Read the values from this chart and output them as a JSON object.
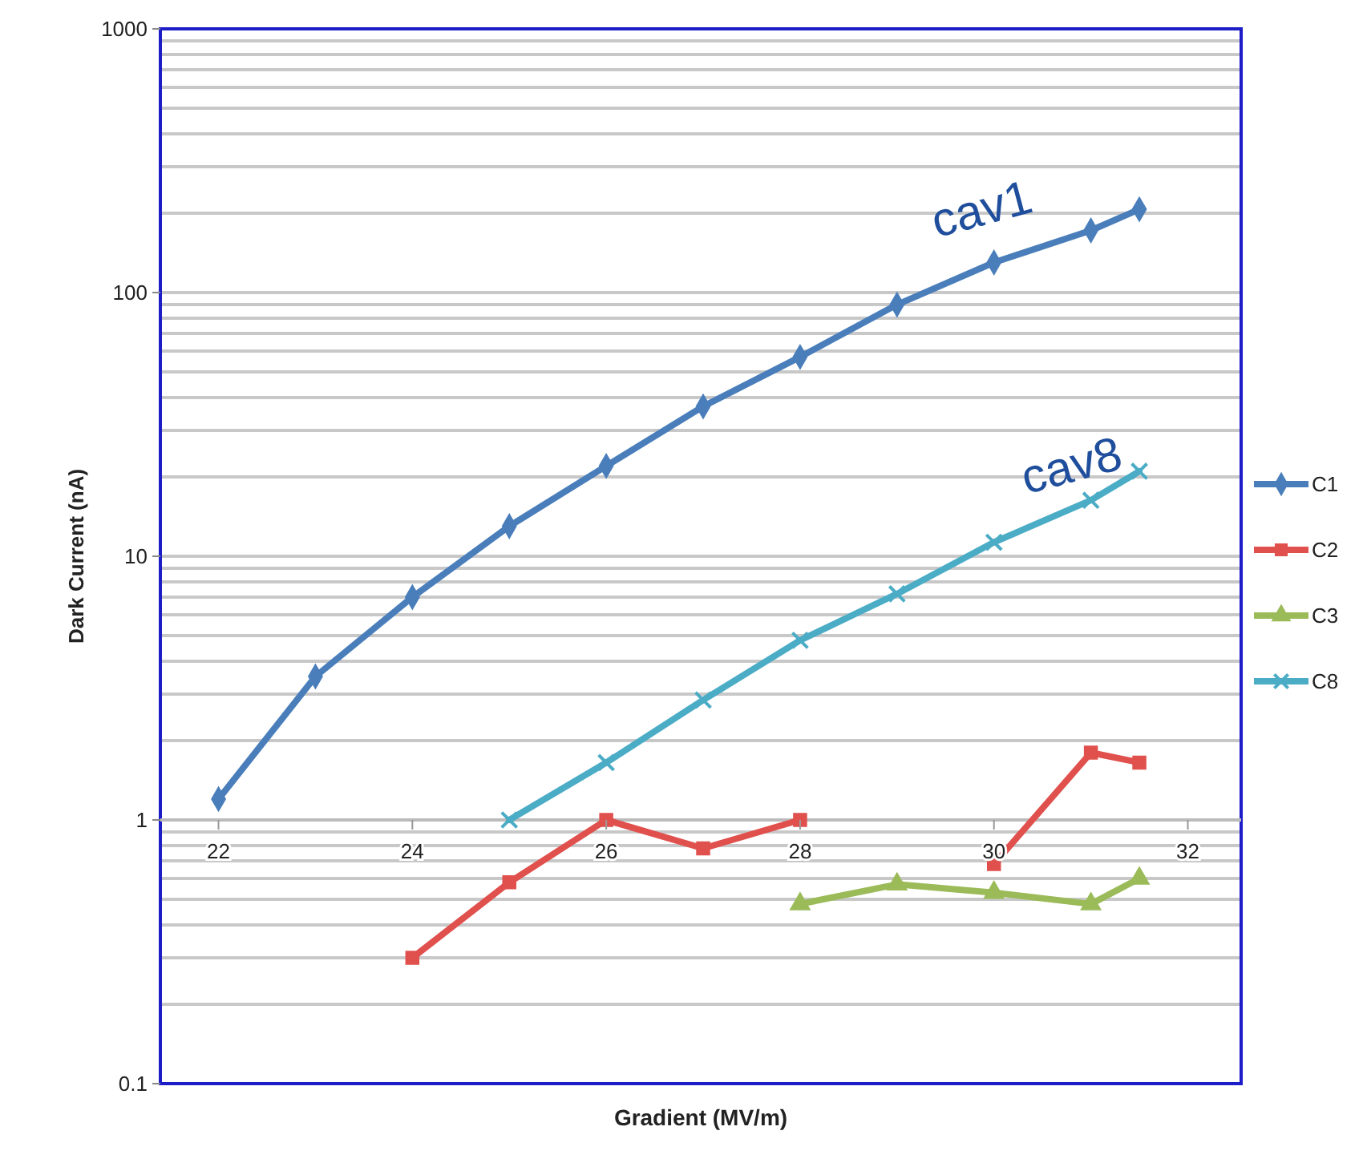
{
  "chart_data": {
    "type": "line",
    "xlabel": "Gradient (MV/m)",
    "ylabel": "Dark Current (nA)",
    "log": "y",
    "grid": "y",
    "legend": "right",
    "xlim": [
      21.4,
      32.55
    ],
    "xticks": [
      22,
      24,
      26,
      28,
      30,
      32
    ],
    "ylim": [
      0.1,
      1000
    ],
    "yticks": [
      0.1,
      1,
      10,
      100,
      1000
    ],
    "x": [
      22,
      23,
      24,
      25,
      26,
      27,
      28,
      29,
      30,
      31,
      31.5
    ],
    "series": [
      {
        "name": "C1",
        "color": "#4a7ebb",
        "marker": "diamond",
        "values": [
          1.2,
          3.5,
          7.0,
          13,
          22,
          37,
          57,
          90,
          130,
          172,
          207
        ]
      },
      {
        "name": "C2",
        "color": "#e0504d",
        "marker": "square",
        "values": [
          null,
          null,
          0.3,
          0.58,
          1.0,
          0.78,
          1.0,
          null,
          0.68,
          1.8,
          1.65
        ]
      },
      {
        "name": "C3",
        "color": "#9bbb59",
        "marker": "triangle",
        "values": [
          null,
          null,
          null,
          null,
          null,
          null,
          0.48,
          0.57,
          0.53,
          0.48,
          0.6
        ]
      },
      {
        "name": "C8",
        "color": "#4bacc6",
        "marker": "cross",
        "values": [
          null,
          null,
          null,
          1.0,
          1.65,
          2.85,
          4.8,
          7.2,
          11.3,
          16.3,
          21
        ]
      }
    ],
    "annotations": [
      "cav1",
      "cav8"
    ]
  }
}
